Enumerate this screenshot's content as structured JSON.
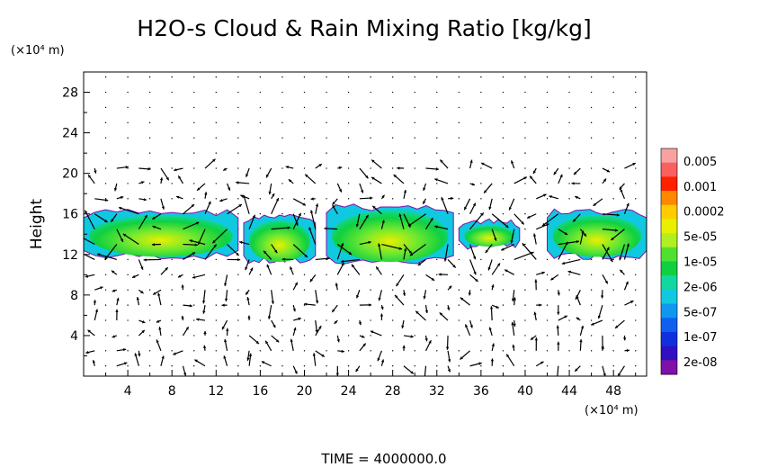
{
  "chart_data": {
    "type": "heatmap",
    "title": "H2O-s Cloud & Rain Mixing Ratio [kg/kg]",
    "ylabel": "Height",
    "y_unit": "(×10⁴ m)",
    "x_unit": "(×10⁴ m)",
    "xlim": [
      0,
      51
    ],
    "ylim": [
      0,
      30
    ],
    "x_ticks": [
      "4",
      "8",
      "12",
      "16",
      "20",
      "24",
      "28",
      "32",
      "36",
      "40",
      "44",
      "48"
    ],
    "y_ticks": [
      "4",
      "8",
      "12",
      "16",
      "20",
      "24",
      "28"
    ],
    "colorbar": {
      "labels": [
        "0.005",
        "0.001",
        "0.0002",
        "5e-05",
        "1e-05",
        "2e-06",
        "5e-07",
        "1e-07",
        "2e-08"
      ],
      "colors": [
        "#f9a0a0",
        "#f96060",
        "#ff2000",
        "#ff8800",
        "#ffcc00",
        "#e8f000",
        "#b0f020",
        "#50e030",
        "#10d040",
        "#10d8a0",
        "#10c8e0",
        "#1098f0",
        "#1060f0",
        "#1030e0",
        "#3010c0",
        "#8010a8"
      ]
    },
    "cloud_layers": [
      {
        "x_start": 0,
        "x_end": 14,
        "z_base": 11.5,
        "z_top": 16.5
      },
      {
        "x_start": 14.5,
        "x_end": 21,
        "z_base": 11,
        "z_top": 16
      },
      {
        "x_start": 22,
        "x_end": 33.5,
        "z_base": 11,
        "z_top": 17
      },
      {
        "x_start": 34,
        "x_end": 39.5,
        "z_base": 12.5,
        "z_top": 15.5
      },
      {
        "x_start": 42,
        "x_end": 51,
        "z_base": 11.5,
        "z_top": 16.5
      }
    ],
    "grid": "dotted",
    "vectors": "wind arrows overlaid"
  },
  "footer": {
    "time_label": "TIME  =  4000000.0"
  }
}
